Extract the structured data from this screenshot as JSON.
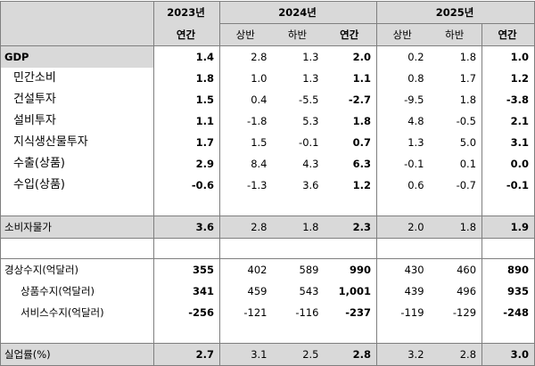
{
  "header": {
    "year_2023": "2023년",
    "year_2024": "2024년",
    "year_2025": "2025년",
    "sub_2023": [
      "연간"
    ],
    "sub_2024": [
      "상반",
      "하반",
      "연간"
    ],
    "sub_2025": [
      "상반",
      "하반",
      "연간"
    ]
  },
  "rows": [
    {
      "label": "GDP",
      "values": [
        "1.4",
        "2.8",
        "1.3",
        "2.0",
        "0.2",
        "1.8",
        "1.0"
      ]
    },
    {
      "label": "민간소비",
      "values": [
        "1.8",
        "1.0",
        "1.3",
        "1.1",
        "0.8",
        "1.7",
        "1.2"
      ]
    },
    {
      "label": "건설투자",
      "values": [
        "1.5",
        "0.4",
        "-5.5",
        "-2.7",
        "-9.5",
        "1.8",
        "-3.8"
      ]
    },
    {
      "label": "설비투자",
      "values": [
        "1.1",
        "-1.8",
        "5.3",
        "1.8",
        "4.8",
        "-0.5",
        "2.1"
      ]
    },
    {
      "label": "지식생산물투자",
      "values": [
        "1.7",
        "1.5",
        "-0.1",
        "0.7",
        "1.3",
        "5.0",
        "3.1"
      ]
    },
    {
      "label": "수출(상품)",
      "values": [
        "2.9",
        "8.4",
        "4.3",
        "6.3",
        "-0.1",
        "0.1",
        "0.0"
      ]
    },
    {
      "label": "수입(상품)",
      "values": [
        "-0.6",
        "-1.3",
        "3.6",
        "1.2",
        "0.6",
        "-0.7",
        "-0.1"
      ]
    },
    {
      "label": "소비자물가",
      "values": [
        "3.6",
        "2.8",
        "1.8",
        "2.3",
        "2.0",
        "1.8",
        "1.9"
      ]
    },
    {
      "label": "경상수지(억달러)",
      "values": [
        "355",
        "402",
        "589",
        "990",
        "430",
        "460",
        "890"
      ]
    },
    {
      "label": "상품수지(억달러)",
      "values": [
        "341",
        "459",
        "543",
        "1,001",
        "439",
        "496",
        "935"
      ]
    },
    {
      "label": "서비스수지(억달러)",
      "values": [
        "-256",
        "-121",
        "-116",
        "-237",
        "-119",
        "-129",
        "-248"
      ]
    },
    {
      "label": "실업률(%)",
      "values": [
        "2.7",
        "3.1",
        "2.5",
        "2.8",
        "3.2",
        "2.8",
        "3.0"
      ]
    }
  ]
}
